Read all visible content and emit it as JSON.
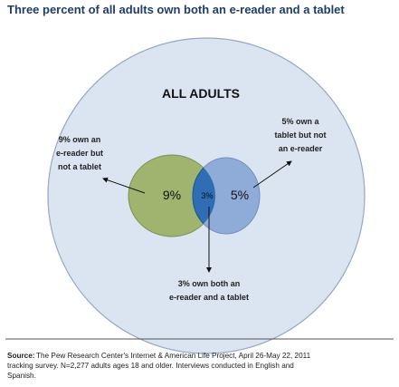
{
  "title": "Three percent of all adults own both an e-reader and a tablet",
  "outer_label": "ALL ADULTS",
  "regions": {
    "ereader_only": "9%",
    "both": "3%",
    "tablet_only": "5%"
  },
  "annotations": {
    "ereader_only": [
      "9% own an",
      "e-reader but",
      "not a tablet"
    ],
    "tablet_only": [
      "5% own a",
      "tablet but not",
      "an e-reader"
    ],
    "both": [
      "3% own both an",
      "e-reader and a tablet"
    ]
  },
  "source": {
    "label": "Source:",
    "lines": [
      "The Pew Research Center's Internet & American Life Project, April 26-May 22, 2011",
      "tracking survey. N=2,277 adults ages 18 and older. Interviews conducted in English and",
      "Spanish."
    ]
  }
}
